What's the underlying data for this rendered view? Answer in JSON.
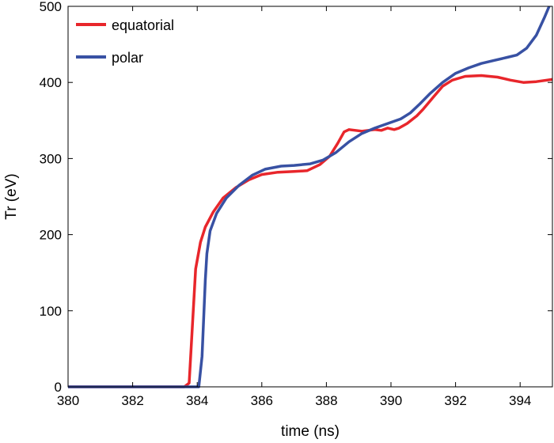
{
  "chart_data": {
    "type": "line",
    "xlabel": "time (ns)",
    "ylabel": "Tr (eV)",
    "xlim": [
      380,
      395
    ],
    "ylim": [
      0,
      500
    ],
    "xticks": [
      380,
      382,
      384,
      386,
      388,
      390,
      392,
      394
    ],
    "yticks": [
      0,
      100,
      200,
      300,
      400,
      500
    ],
    "grid": false,
    "legend_position": "top-left",
    "series": [
      {
        "name": "equatorial",
        "color": "#e8262b",
        "points": [
          [
            380,
            0
          ],
          [
            383.6,
            0
          ],
          [
            383.75,
            5
          ],
          [
            383.85,
            80
          ],
          [
            383.95,
            155
          ],
          [
            384.1,
            190
          ],
          [
            384.25,
            210
          ],
          [
            384.5,
            230
          ],
          [
            384.8,
            248
          ],
          [
            385.2,
            262
          ],
          [
            385.6,
            272
          ],
          [
            386.0,
            279
          ],
          [
            386.5,
            282
          ],
          [
            387.0,
            283
          ],
          [
            387.4,
            284
          ],
          [
            387.8,
            292
          ],
          [
            388.1,
            303
          ],
          [
            388.35,
            320
          ],
          [
            388.55,
            335
          ],
          [
            388.7,
            338
          ],
          [
            388.9,
            337
          ],
          [
            389.1,
            336
          ],
          [
            389.3,
            337
          ],
          [
            389.5,
            338
          ],
          [
            389.7,
            337
          ],
          [
            389.9,
            340
          ],
          [
            390.1,
            338
          ],
          [
            390.25,
            340
          ],
          [
            390.5,
            346
          ],
          [
            390.8,
            356
          ],
          [
            391.0,
            365
          ],
          [
            391.3,
            380
          ],
          [
            391.6,
            395
          ],
          [
            391.9,
            403
          ],
          [
            392.3,
            408
          ],
          [
            392.8,
            409
          ],
          [
            393.3,
            407
          ],
          [
            393.7,
            403
          ],
          [
            394.1,
            400
          ],
          [
            394.5,
            401
          ],
          [
            395,
            404
          ]
        ]
      },
      {
        "name": "polar",
        "color": "#3851a3",
        "points": [
          [
            380,
            0
          ],
          [
            384.05,
            0
          ],
          [
            384.15,
            40
          ],
          [
            384.25,
            140
          ],
          [
            384.3,
            175
          ],
          [
            384.4,
            205
          ],
          [
            384.6,
            228
          ],
          [
            384.9,
            248
          ],
          [
            385.3,
            265
          ],
          [
            385.7,
            278
          ],
          [
            386.1,
            286
          ],
          [
            386.6,
            290
          ],
          [
            387.0,
            291
          ],
          [
            387.5,
            293
          ],
          [
            387.9,
            298
          ],
          [
            388.3,
            308
          ],
          [
            388.7,
            322
          ],
          [
            389.1,
            333
          ],
          [
            389.5,
            340
          ],
          [
            389.9,
            346
          ],
          [
            390.3,
            352
          ],
          [
            390.6,
            360
          ],
          [
            390.9,
            372
          ],
          [
            391.2,
            385
          ],
          [
            391.6,
            400
          ],
          [
            392.0,
            412
          ],
          [
            392.4,
            419
          ],
          [
            392.8,
            425
          ],
          [
            393.2,
            429
          ],
          [
            393.6,
            433
          ],
          [
            393.9,
            436
          ],
          [
            394.2,
            445
          ],
          [
            394.5,
            462
          ],
          [
            394.75,
            485
          ],
          [
            394.9,
            500
          ]
        ]
      }
    ]
  }
}
